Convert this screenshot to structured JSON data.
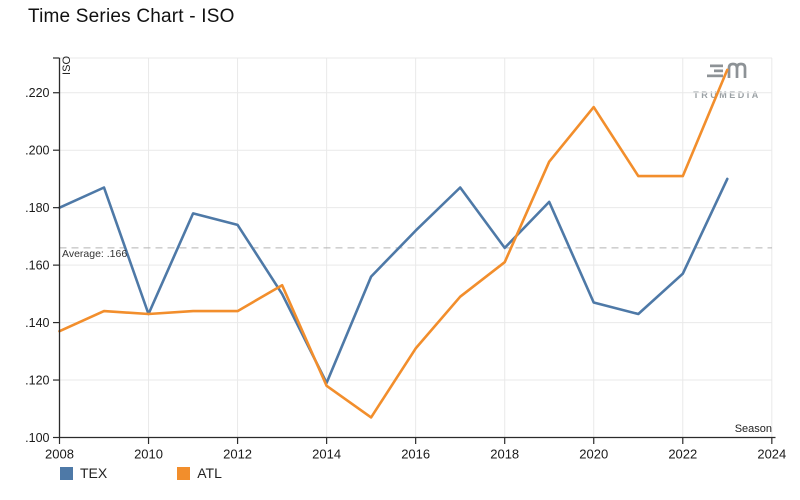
{
  "title": "Time Series Chart - ISO",
  "logo": {
    "brand": "TRUMEDIA"
  },
  "legend": [
    {
      "label": "TEX",
      "color": "#4e79a7"
    },
    {
      "label": "ATL",
      "color": "#f28e2c"
    }
  ],
  "chart_data": {
    "type": "line",
    "title": "Time Series Chart - ISO",
    "xlabel": "Season",
    "ylabel": "ISO",
    "x": [
      2008,
      2009,
      2010,
      2011,
      2012,
      2013,
      2014,
      2015,
      2016,
      2017,
      2018,
      2019,
      2020,
      2021,
      2022,
      2023
    ],
    "series": [
      {
        "name": "TEX",
        "color": "#4e79a7",
        "values": [
          0.18,
          0.187,
          0.143,
          0.178,
          0.174,
          0.15,
          0.119,
          0.156,
          0.172,
          0.187,
          0.166,
          0.182,
          0.147,
          0.143,
          0.157,
          0.19
        ]
      },
      {
        "name": "ATL",
        "color": "#f28e2c",
        "values": [
          0.137,
          0.144,
          0.143,
          0.144,
          0.144,
          0.153,
          0.118,
          0.107,
          0.131,
          0.149,
          0.161,
          0.196,
          0.215,
          0.191,
          0.191,
          0.228
        ]
      }
    ],
    "average": {
      "value": 0.166,
      "label": "Average: .166"
    },
    "x_ticks": [
      2008,
      2010,
      2012,
      2014,
      2016,
      2018,
      2020,
      2022,
      2024
    ],
    "y_ticks": [
      ".100",
      ".120",
      ".140",
      ".160",
      ".180",
      ".200",
      ".220"
    ],
    "xlim": [
      2008,
      2024
    ],
    "ylim": [
      0.1,
      0.232
    ],
    "grid": true,
    "legend_position": "bottom-left"
  },
  "colors": {
    "axis": "#2b2b2b",
    "gridline": "#e9e9e9",
    "average_line": "#b4b4b4",
    "tick_text": "#1a1a1a",
    "logo_gray": "#8d9296"
  }
}
